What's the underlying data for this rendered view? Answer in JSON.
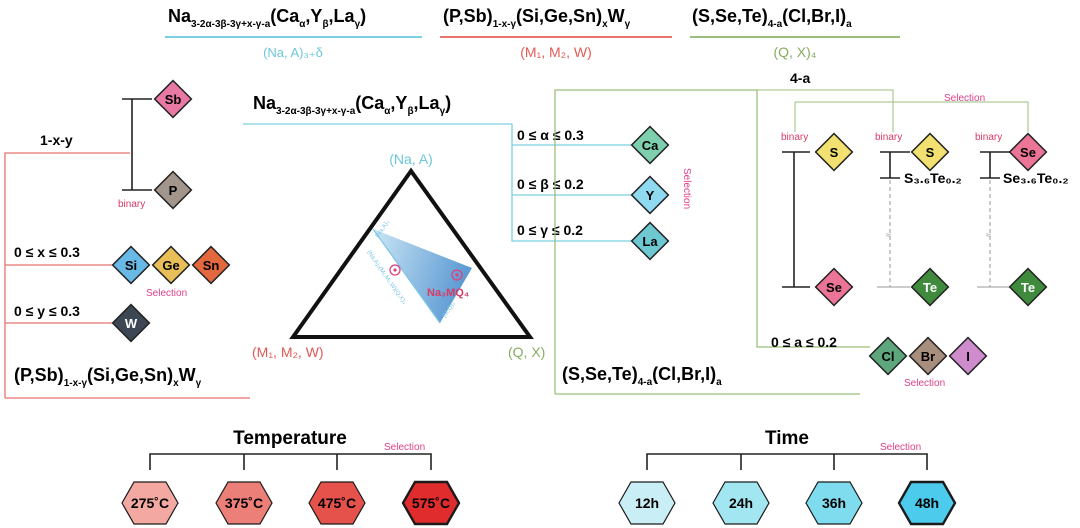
{
  "formula_top": {
    "na": {
      "base": "Na",
      "sub1": "3-2α-3β-3γ+x-γ-a",
      "open": "(Ca",
      "s_a": "α",
      "y": ",Y",
      "s_b": "β",
      "la": ",La",
      "s_g": "γ",
      "close": ")"
    },
    "p": {
      "base": "(P,Sb)",
      "sub1": "1-x-γ",
      "mid": "(Si,Ge,Sn)",
      "sx": "x",
      "w": "W",
      "sy": "γ"
    },
    "s": {
      "base": "(S,Se,Te)",
      "sub1": "4-a",
      "mid": "(Cl,Br,I)",
      "sa": "a"
    }
  },
  "site_labels": {
    "na": "(Na, A)₃₊δ",
    "m": "(M₁, M₂, W)",
    "q": "(Q, X)₄"
  },
  "triangle": {
    "top": "(Na, A)",
    "left": "(M₁, M₂, W)",
    "right": "(Q, X)",
    "target": "Na₃MQ₄",
    "inner_top": "(Na,A)₃",
    "inner_left": "(Na,A)₃(M₁,M₂,W)(Q,X)₄",
    "inner_bottom": "(M,Q)₄"
  },
  "na_branch": {
    "formula": {
      "base": "Na",
      "sub1": "3-2α-3β-3γ+x-γ-a",
      "open": "(Ca",
      "s_a": "α",
      "y": ",Y",
      "s_b": "β",
      "la": ",La",
      "s_g": "γ",
      "close": ")"
    },
    "ranges": [
      "0 ≤ α ≤ 0.3",
      "0 ≤ β ≤ 0.2",
      "0 ≤ γ ≤ 0.2"
    ],
    "elements": [
      "Ca",
      "Y",
      "La"
    ],
    "selection": "Selection"
  },
  "m_branch": {
    "one_minus": "1-x-y",
    "sb": "Sb",
    "p": "P",
    "binary": "binary",
    "x_range": "0 ≤ x ≤ 0.3",
    "si": "Si",
    "ge": "Ge",
    "sn": "Sn",
    "selection": "Selection",
    "y_range": "0 ≤ y ≤ 0.3",
    "w": "W",
    "formula": {
      "base": "(P,Sb)",
      "sub1": "1-x-γ",
      "mid": "(Si,Ge,Sn)",
      "sx": "x",
      "w": "W",
      "sy": "γ"
    }
  },
  "s_branch": {
    "four_minus": "4-a",
    "selection_top": "Selection",
    "binary": "binary",
    "col1_top": "S",
    "col1_bot": "Se",
    "col2_top": "S",
    "col2_mid": "S₃.₆Te₀.₂",
    "col2_bot": "Te",
    "col3_top": "Se",
    "col3_mid": "Se₃.₆Te₀.₂",
    "col3_bot": "Te",
    "a_range": "0 ≤ a ≤ 0.2",
    "cl": "Cl",
    "br": "Br",
    "i": "I",
    "selection_bottom": "Selection",
    "formula": {
      "base": "(S,Se,Te)",
      "sub1": "4-a",
      "mid": "(Cl,Br,I)",
      "sa": "a"
    }
  },
  "temperature": {
    "title": "Temperature",
    "selection": "Selection",
    "values": [
      "275˚C",
      "375˚C",
      "475˚C",
      "575˚C"
    ],
    "colors": [
      "#f3a9a2",
      "#ec7f78",
      "#e5514b",
      "#e02c2c"
    ]
  },
  "time": {
    "title": "Time",
    "selection": "Selection",
    "values": [
      "12h",
      "24h",
      "36h",
      "48h"
    ],
    "colors": [
      "#c9eef5",
      "#a2e6f2",
      "#7fdcef",
      "#4ccbec"
    ]
  },
  "colors": {
    "na_line": "#7ccfe0",
    "m_line": "#e8736f",
    "s_line": "#9bbf7a",
    "sb": "#e879a5",
    "p": "#a2968c",
    "si": "#69b9e6",
    "ge": "#e8be58",
    "sn": "#e3683d",
    "w": "#3d4753",
    "ca": "#7dcfae",
    "y": "#8fdaf0",
    "la": "#6ec8d2",
    "s": "#f2e170",
    "se": "#ec7597",
    "te": "#3f8a3c",
    "cl": "#5ea77c",
    "br": "#a88e7c",
    "i": "#cf8ccc"
  }
}
